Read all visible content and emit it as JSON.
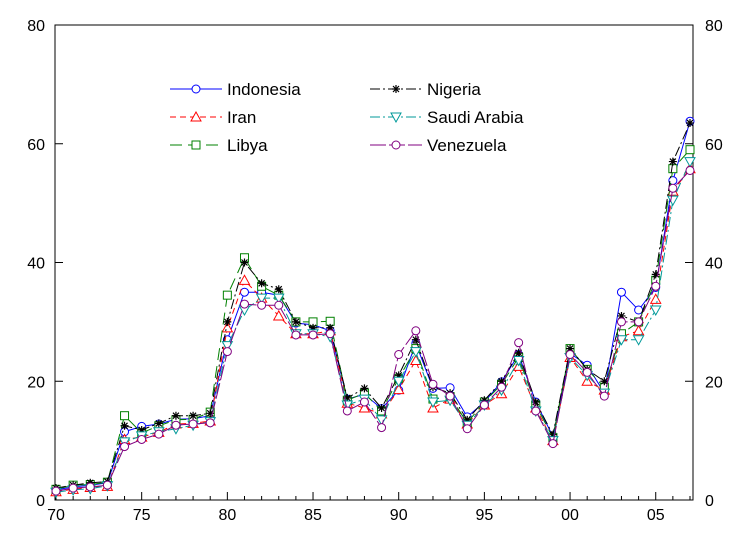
{
  "chart_data": {
    "type": "line",
    "title": "",
    "xlabel": "",
    "ylabel": "",
    "x": [
      1970,
      1971,
      1972,
      1973,
      1974,
      1975,
      1976,
      1977,
      1978,
      1979,
      1980,
      1981,
      1982,
      1983,
      1984,
      1985,
      1986,
      1987,
      1988,
      1989,
      1990,
      1991,
      1992,
      1993,
      1994,
      1995,
      1996,
      1997,
      1998,
      1999,
      2000,
      2001,
      2002,
      2003,
      2004,
      2005,
      2006,
      2007
    ],
    "xlim": [
      1970,
      2007
    ],
    "ylim": [
      0,
      80
    ],
    "x_ticks": [
      1970,
      1975,
      1980,
      1985,
      1990,
      1995,
      2000,
      2005
    ],
    "x_tick_labels": [
      "70",
      "75",
      "80",
      "85",
      "90",
      "95",
      "00",
      "05"
    ],
    "y_ticks": [
      0,
      20,
      40,
      60,
      80
    ],
    "y_tick_labels": [
      "0",
      "20",
      "40",
      "60",
      "80"
    ],
    "right_axis": true,
    "grid": false,
    "legend_position": "top-left",
    "series": [
      {
        "name": "Indonesia",
        "color": "#0000ff",
        "dash": "solid",
        "marker": "circle",
        "values": [
          1.7,
          2.2,
          2.5,
          2.9,
          11.5,
          12.4,
          12.8,
          13.6,
          13.7,
          14.2,
          27.0,
          35.0,
          35.0,
          34.5,
          29.8,
          29.5,
          28.5,
          17.0,
          17.8,
          15.4,
          18.5,
          26.4,
          18.8,
          18.9,
          14.0,
          16.5,
          19.9,
          24.5,
          16.5,
          10.7,
          24.7,
          22.7,
          18.0,
          35.0,
          32.0,
          35.8,
          53.8,
          63.8
        ]
      },
      {
        "name": "Iran",
        "color": "#ff0000",
        "dash": "6,4",
        "marker": "triangle-up",
        "values": [
          1.4,
          1.8,
          2.1,
          2.3,
          10.2,
          10.6,
          11.4,
          12.8,
          12.9,
          13.3,
          29.0,
          37.0,
          34.0,
          31.0,
          28.0,
          28.0,
          28.5,
          16.3,
          15.5,
          14.5,
          18.6,
          23.5,
          15.5,
          17.0,
          12.8,
          16.0,
          17.9,
          22.5,
          15.5,
          10.0,
          24.0,
          20.0,
          18.5,
          27.5,
          28.5,
          33.8,
          52.0,
          55.8
        ]
      },
      {
        "name": "Libya",
        "color": "#008000",
        "dash": "12,6",
        "marker": "square",
        "values": [
          1.8,
          2.5,
          2.6,
          3.0,
          14.2,
          11.3,
          12.5,
          13.5,
          13.6,
          14.8,
          34.5,
          40.8,
          36.0,
          34.5,
          30.0,
          30.0,
          30.1,
          16.8,
          18.0,
          15.0,
          20.5,
          25.5,
          17.0,
          17.4,
          13.0,
          16.5,
          19.5,
          24.0,
          16.0,
          10.5,
          25.5,
          22.0,
          19.0,
          28.0,
          30.0,
          37.0,
          55.8,
          59.0
        ]
      },
      {
        "name": "Nigeria",
        "color": "#000000",
        "dash": "10,3,2,3",
        "marker": "asterisk",
        "values": [
          2.0,
          2.5,
          2.9,
          3.1,
          12.5,
          11.8,
          12.9,
          14.2,
          14.2,
          14.6,
          30.0,
          40.0,
          36.5,
          35.5,
          30.0,
          29.0,
          29.0,
          17.2,
          18.8,
          15.5,
          21.0,
          27.0,
          19.0,
          18.0,
          13.5,
          16.8,
          20.0,
          24.8,
          16.5,
          11.0,
          25.5,
          22.0,
          20.0,
          31.0,
          30.0,
          38.0,
          57.0,
          63.5
        ]
      },
      {
        "name": "Saudi Arabia",
        "color": "#009999",
        "dash": "10,3,2,3",
        "marker": "triangle-down",
        "values": [
          1.3,
          1.7,
          1.9,
          2.4,
          9.8,
          10.8,
          11.5,
          12.0,
          12.6,
          13.2,
          26.0,
          32.0,
          34.0,
          34.0,
          28.0,
          28.0,
          27.5,
          16.0,
          17.0,
          13.5,
          20.0,
          25.0,
          16.5,
          16.8,
          12.6,
          16.0,
          18.5,
          23.5,
          15.0,
          10.0,
          24.0,
          21.0,
          18.0,
          27.0,
          27.0,
          32.0,
          50.5,
          57.0
        ]
      },
      {
        "name": "Venezuela",
        "color": "#800080",
        "dash": "16,3",
        "marker": "circle",
        "values": [
          1.5,
          2.0,
          2.2,
          2.5,
          9.0,
          10.2,
          11.1,
          12.6,
          12.8,
          13.0,
          25.0,
          33.0,
          32.8,
          32.8,
          27.8,
          27.8,
          28.0,
          15.0,
          16.5,
          12.2,
          24.5,
          28.5,
          19.5,
          17.5,
          12.0,
          16.0,
          19.0,
          26.5,
          15.0,
          9.5,
          24.5,
          21.5,
          17.5,
          30.0,
          30.0,
          36.0,
          52.5,
          55.5
        ]
      }
    ]
  }
}
